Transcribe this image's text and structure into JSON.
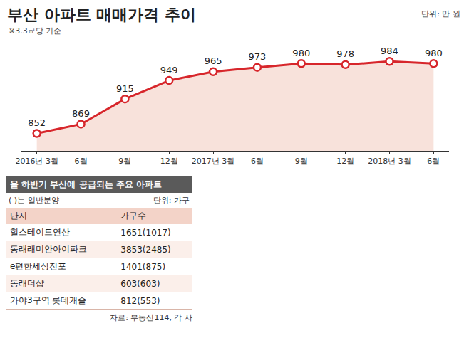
{
  "chart_data": {
    "type": "line",
    "title": "부산 아파트 매매가격 추이",
    "subtitle": "※3.3㎡당 기준",
    "annotations": [
      "단위: 만 원"
    ],
    "categories": [
      "2016년 3월",
      "6월",
      "9월",
      "12월",
      "2017년 3월",
      "6월",
      "9월",
      "12월",
      "2018년 3월",
      "6월"
    ],
    "values": [
      852,
      869,
      915,
      949,
      965,
      973,
      980,
      978,
      984,
      980
    ],
    "color": "#d7262b",
    "ylim": [
      820,
      1000
    ],
    "data_labels": true,
    "tick_labels": "x",
    "grid": false,
    "marker": "circle"
  },
  "table": {
    "title": "올 하반기 부산에 공급되는 주요 아파트",
    "note": "( )는 일반분양",
    "unit": "단위: 가구",
    "columns": [
      "단지",
      "가구수"
    ],
    "rows": [
      [
        "힐스테이트연산",
        "1651(1017)"
      ],
      [
        "동래래미안아이파크",
        "3853(2485)"
      ],
      [
        "e편한세상전포",
        "1401(875)"
      ],
      [
        "동래더샵",
        "603(603)"
      ],
      [
        "가야3구역 롯데캐슬",
        "812(553)"
      ]
    ],
    "source": "자료: 부동산114, 각 사"
  }
}
